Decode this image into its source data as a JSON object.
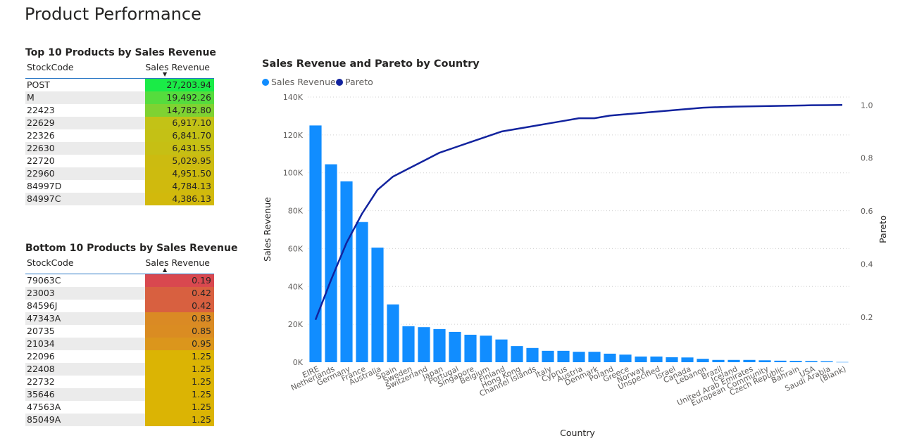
{
  "page_title": "Product Performance",
  "top_table": {
    "title": "Top 10 Products by Sales Revenue",
    "col_code": "StockCode",
    "col_revenue": "Sales Revenue",
    "rows": [
      {
        "code": "POST",
        "revenue": "27,203.94",
        "color": "#1aeb47"
      },
      {
        "code": "M",
        "revenue": "19,492.26",
        "color": "#55dc3d"
      },
      {
        "code": "22423",
        "revenue": "14,782.80",
        "color": "#7fd232"
      },
      {
        "code": "22629",
        "revenue": "6,917.10",
        "color": "#c3c216"
      },
      {
        "code": "22326",
        "revenue": "6,841.70",
        "color": "#c4c115"
      },
      {
        "code": "22630",
        "revenue": "6,431.55",
        "color": "#c6bf14"
      },
      {
        "code": "22720",
        "revenue": "5,029.95",
        "color": "#ccbb10"
      },
      {
        "code": "22960",
        "revenue": "4,951.50",
        "color": "#cdbb0f"
      },
      {
        "code": "84997D",
        "revenue": "4,784.13",
        "color": "#d0ba0d"
      },
      {
        "code": "84997C",
        "revenue": "4,386.13",
        "color": "#d2b90c"
      }
    ]
  },
  "bottom_table": {
    "title": "Bottom 10 Products by Sales Revenue",
    "col_code": "StockCode",
    "col_revenue": "Sales Revenue",
    "rows": [
      {
        "code": "79063C",
        "revenue": "0.19",
        "color": "#d9484f"
      },
      {
        "code": "23003",
        "revenue": "0.42",
        "color": "#d86040"
      },
      {
        "code": "84596J",
        "revenue": "0.42",
        "color": "#d86040"
      },
      {
        "code": "47343A",
        "revenue": "0.83",
        "color": "#da8a24"
      },
      {
        "code": "20735",
        "revenue": "0.85",
        "color": "#da8c22"
      },
      {
        "code": "21034",
        "revenue": "0.95",
        "color": "#db961c"
      },
      {
        "code": "22096",
        "revenue": "1.25",
        "color": "#dbb404"
      },
      {
        "code": "22408",
        "revenue": "1.25",
        "color": "#dbb404"
      },
      {
        "code": "22732",
        "revenue": "1.25",
        "color": "#dbb404"
      },
      {
        "code": "35646",
        "revenue": "1.25",
        "color": "#dbb404"
      },
      {
        "code": "47563A",
        "revenue": "1.25",
        "color": "#dbb404"
      },
      {
        "code": "85049A",
        "revenue": "1.25",
        "color": "#dbb404"
      }
    ]
  },
  "chart_data": {
    "type": "bar",
    "title": "Sales Revenue and Pareto by Country",
    "xlabel": "Country",
    "ylabel": "Sales Revenue",
    "y2label": "Pareto",
    "ylim": [
      0,
      140000
    ],
    "y2lim": [
      0.03,
      1.03
    ],
    "yticks": [
      "0K",
      "20K",
      "40K",
      "60K",
      "80K",
      "100K",
      "120K",
      "140K"
    ],
    "y2ticks": [
      "0.2",
      "0.4",
      "0.6",
      "0.8",
      "1.0"
    ],
    "legend_position": "top-left",
    "bar_color": "#118dff",
    "line_color": "#12239e",
    "categories": [
      "EIRE",
      "Netherlands",
      "Germany",
      "France",
      "Australia",
      "Spain",
      "Sweden",
      "Switzerland",
      "Japan",
      "Portugal",
      "Singapore",
      "Belgium",
      "Finland",
      "Hong Kong",
      "Channel Islands",
      "Italy",
      "Cyprus",
      "Austria",
      "Denmark",
      "Poland",
      "Greece",
      "Norway",
      "Unspecified",
      "Israel",
      "Canada",
      "Lebanon",
      "Brazil",
      "Iceland",
      "United Arab Emirates",
      "European Community",
      "Czech Republic",
      "Bahrain",
      "USA",
      "Saudi Arabia",
      "(Blank)"
    ],
    "series": [
      {
        "name": "Sales Revenue",
        "axis": "left",
        "values": [
          125000,
          104500,
          95500,
          74000,
          60500,
          30500,
          19000,
          18500,
          17500,
          16000,
          14500,
          14000,
          12000,
          8500,
          7500,
          6000,
          6000,
          5500,
          5500,
          4500,
          4000,
          3000,
          3000,
          2600,
          2500,
          1800,
          1200,
          1200,
          1200,
          1000,
          800,
          700,
          600,
          500,
          100
        ]
      },
      {
        "name": "Pareto",
        "axis": "right",
        "values": [
          0.19,
          0.34,
          0.48,
          0.59,
          0.68,
          0.73,
          0.76,
          0.79,
          0.82,
          0.84,
          0.86,
          0.88,
          0.9,
          0.91,
          0.92,
          0.93,
          0.94,
          0.95,
          0.95,
          0.96,
          0.965,
          0.97,
          0.975,
          0.98,
          0.985,
          0.99,
          0.992,
          0.994,
          0.995,
          0.996,
          0.997,
          0.998,
          0.999,
          0.9995,
          1.0
        ]
      }
    ]
  }
}
